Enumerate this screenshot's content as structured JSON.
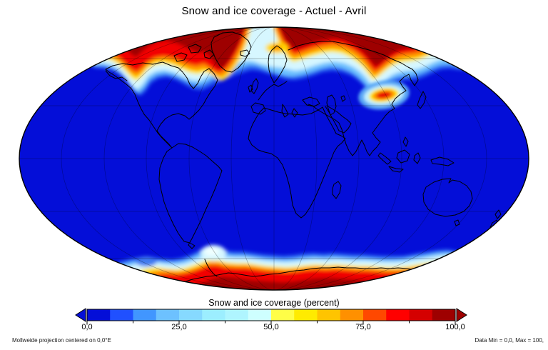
{
  "title": "Snow and ice coverage - Actuel - Avril",
  "map": {
    "projection": "Mollweide",
    "ocean_color": "#040ED8",
    "outline_color": "#000000"
  },
  "colorbar": {
    "label": "Snow and ice coverage (percent)",
    "tick_labels": [
      "0,0",
      "25,0",
      "50,0",
      "75,0",
      "100,0"
    ],
    "palette": [
      "#040ED8",
      "#2050FF",
      "#4196FF",
      "#6DC1FF",
      "#86D9FF",
      "#9CEEFF",
      "#AFF5FF",
      "#CEFFFF",
      "#FFFE47",
      "#FFEB00",
      "#FFC400",
      "#FF9000",
      "#FF4800",
      "#FF0000",
      "#D50000",
      "#9E0000"
    ]
  },
  "footer": {
    "left": "Mollweide projection centered on 0,0°E",
    "right": "Data Min = 0,0, Max = 100,"
  }
}
